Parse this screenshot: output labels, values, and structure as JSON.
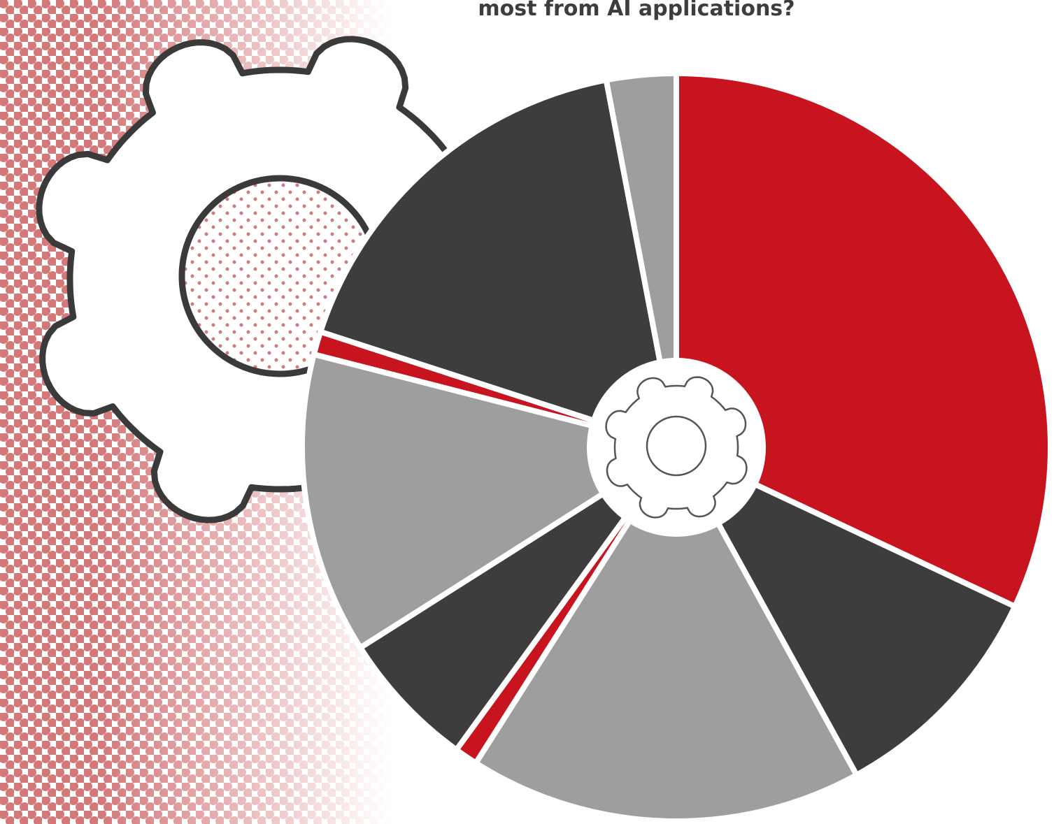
{
  "chart_data": {
    "type": "pie",
    "title": "most from AI applications?",
    "values": [
      32,
      10,
      17,
      1,
      6,
      13,
      1,
      17,
      3
    ],
    "colors": [
      "#c8141e",
      "#3d3d3d",
      "#9e9e9e",
      "#c8141e",
      "#3d3d3d",
      "#9e9e9e",
      "#c8141e",
      "#3d3d3d",
      "#9e9e9e"
    ]
  }
}
